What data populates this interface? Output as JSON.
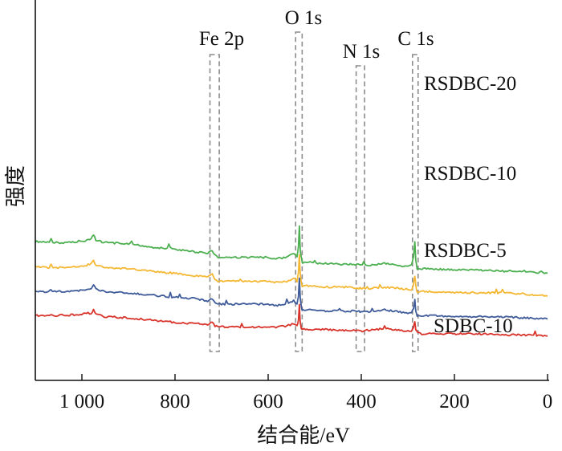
{
  "chart_data": {
    "type": "line",
    "xlabel": "结合能/eV",
    "ylabel": "强度",
    "xlim": [
      1100,
      0
    ],
    "x_ticks": [
      1000,
      800,
      600,
      400,
      200,
      0
    ],
    "x_tick_labels": [
      "1 000",
      "800",
      "600",
      "400",
      "200",
      "0"
    ],
    "y_ticks_shown": false,
    "grid": false,
    "peak_labels": [
      {
        "label": "Fe 2p",
        "x_range": [
          725,
          705
        ]
      },
      {
        "label": "O 1s",
        "x_range": [
          541,
          527
        ]
      },
      {
        "label": "N 1s",
        "x_range": [
          411,
          393
        ]
      },
      {
        "label": "C 1s",
        "x_range": [
          290,
          278
        ]
      }
    ],
    "series": [
      {
        "name": "RSDBC-20",
        "color": "#4caf50",
        "x": [
          1100,
          1070,
          1066,
          1062,
          1040,
          1000,
          990,
          980,
          975,
          970,
          950,
          900,
          850,
          800,
          760,
          730,
          720,
          714,
          708,
          700,
          650,
          600,
          580,
          560,
          545,
          538,
          535,
          533,
          531,
          529,
          527,
          525,
          520,
          500,
          480,
          450,
          420,
          405,
          400,
          395,
          380,
          350,
          300,
          292,
          288,
          285,
          283,
          280,
          270,
          250,
          200,
          150,
          100,
          50,
          0
        ],
        "y": [
          7.4,
          7.3,
          7.6,
          7.3,
          7.3,
          7.4,
          7.5,
          7.7,
          8.0,
          7.5,
          7.3,
          7.2,
          6.9,
          6.7,
          6.5,
          6.4,
          6.6,
          6.2,
          6.0,
          6.0,
          6.0,
          6.0,
          5.9,
          6.0,
          6.4,
          6.0,
          6.9,
          8.8,
          6.6,
          6.0,
          5.6,
          5.5,
          5.6,
          5.5,
          5.5,
          5.4,
          5.4,
          5.4,
          5.3,
          5.4,
          5.3,
          5.5,
          5.2,
          5.3,
          6.0,
          7.3,
          5.7,
          5.0,
          5.0,
          5.0,
          4.9,
          4.9,
          4.8,
          4.8,
          4.6
        ]
      },
      {
        "name": "RSDBC-10",
        "color": "#f4b834",
        "x": [
          1100,
          1070,
          1066,
          1062,
          1040,
          1000,
          990,
          980,
          975,
          970,
          950,
          900,
          850,
          800,
          760,
          730,
          720,
          714,
          708,
          700,
          650,
          600,
          580,
          560,
          545,
          538,
          535,
          533,
          531,
          529,
          527,
          525,
          520,
          500,
          480,
          450,
          420,
          405,
          400,
          395,
          380,
          350,
          300,
          292,
          288,
          285,
          283,
          280,
          270,
          250,
          200,
          150,
          100,
          50,
          0
        ],
        "y": [
          5.2,
          5.1,
          5.4,
          5.1,
          5.1,
          5.2,
          5.3,
          5.5,
          5.8,
          5.3,
          5.1,
          5.0,
          4.8,
          4.6,
          4.4,
          4.3,
          4.5,
          4.1,
          3.9,
          3.9,
          3.9,
          3.9,
          3.8,
          3.9,
          4.2,
          3.9,
          4.6,
          6.3,
          4.5,
          3.9,
          3.5,
          3.5,
          3.5,
          3.5,
          3.4,
          3.4,
          3.4,
          3.3,
          3.3,
          3.3,
          3.3,
          3.4,
          3.2,
          3.2,
          3.6,
          4.4,
          3.5,
          3.0,
          3.0,
          3.0,
          2.9,
          2.9,
          2.9,
          2.8,
          2.6
        ]
      },
      {
        "name": "RSDBC-5",
        "color": "#3f5b9a",
        "x": [
          1100,
          1070,
          1066,
          1062,
          1040,
          1000,
          990,
          980,
          975,
          970,
          950,
          900,
          850,
          800,
          760,
          730,
          720,
          714,
          708,
          700,
          650,
          600,
          580,
          560,
          545,
          538,
          535,
          533,
          531,
          529,
          527,
          525,
          520,
          500,
          480,
          450,
          420,
          405,
          400,
          395,
          380,
          350,
          300,
          292,
          288,
          285,
          283,
          280,
          270,
          250,
          200,
          150,
          100,
          50,
          0
        ],
        "y": [
          3.0,
          3.0,
          3.2,
          3.0,
          3.0,
          3.1,
          3.2,
          3.3,
          3.6,
          3.2,
          3.0,
          2.9,
          2.7,
          2.5,
          2.4,
          2.2,
          2.4,
          2.0,
          1.9,
          1.9,
          1.9,
          1.9,
          1.8,
          1.9,
          2.2,
          1.9,
          2.6,
          4.2,
          2.4,
          1.7,
          1.4,
          1.4,
          1.4,
          1.4,
          1.3,
          1.3,
          1.3,
          1.3,
          1.2,
          1.3,
          1.2,
          1.4,
          1.1,
          1.2,
          1.5,
          2.3,
          1.3,
          0.9,
          0.9,
          0.9,
          0.8,
          0.8,
          0.8,
          0.7,
          0.6
        ]
      },
      {
        "name": "SDBC-10",
        "color": "#d9342b",
        "x": [
          1100,
          1070,
          1066,
          1062,
          1040,
          1000,
          990,
          980,
          975,
          970,
          950,
          900,
          850,
          800,
          760,
          730,
          720,
          714,
          708,
          700,
          650,
          600,
          580,
          560,
          545,
          538,
          535,
          533,
          531,
          529,
          527,
          525,
          520,
          500,
          480,
          450,
          420,
          405,
          400,
          395,
          380,
          350,
          300,
          292,
          288,
          285,
          283,
          280,
          270,
          250,
          200,
          150,
          100,
          50,
          0
        ],
        "y": [
          0.9,
          0.9,
          0.9,
          0.9,
          0.9,
          1.0,
          1.1,
          1.1,
          1.4,
          1.0,
          0.8,
          0.7,
          0.5,
          0.3,
          0.2,
          0.1,
          0.3,
          0.0,
          -0.1,
          -0.1,
          -0.1,
          -0.1,
          -0.1,
          0.0,
          0.2,
          0.0,
          0.5,
          1.9,
          0.3,
          -0.2,
          -0.3,
          -0.3,
          -0.3,
          -0.3,
          -0.3,
          -0.4,
          -0.4,
          -0.4,
          -0.5,
          -0.4,
          -0.4,
          -0.2,
          -0.5,
          -0.4,
          -0.2,
          0.4,
          -0.3,
          -0.6,
          -0.7,
          -0.7,
          -0.7,
          -0.7,
          -0.8,
          -0.8,
          -0.9
        ]
      }
    ]
  }
}
